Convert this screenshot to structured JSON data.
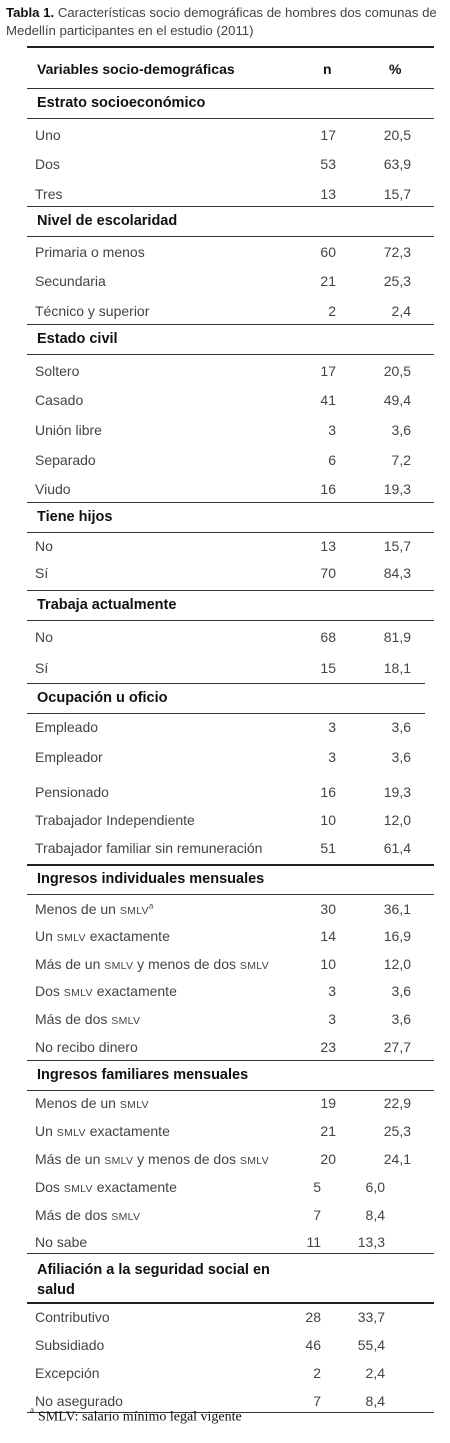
{
  "caption": {
    "label": "Tabla 1.",
    "text": "Características socio demográficas de hombres dos comunas de Medellín participantes en el estudio (2011)"
  },
  "header": {
    "variable": "Variables socio-demográficas",
    "n": "n",
    "pct": "%"
  },
  "sections": [
    {
      "title": "Estrato socioeconómico",
      "rows": [
        {
          "label": "Uno",
          "n": "17",
          "pct": "20,5"
        },
        {
          "label": "Dos",
          "n": "53",
          "pct": "63,9"
        },
        {
          "label": "Tres",
          "n": "13",
          "pct": "15,7"
        }
      ]
    },
    {
      "title": "Nivel de escolaridad",
      "rows": [
        {
          "label": "Primaria o menos",
          "n": "60",
          "pct": "72,3"
        },
        {
          "label": "Secundaria",
          "n": "21",
          "pct": "25,3"
        },
        {
          "label": "Técnico y superior",
          "n": "2",
          "pct": "2,4"
        }
      ]
    },
    {
      "title": "Estado civil",
      "rows": [
        {
          "label": "Soltero",
          "n": "17",
          "pct": "20,5"
        },
        {
          "label": "Casado",
          "n": "41",
          "pct": "49,4"
        },
        {
          "label": "Unión libre",
          "n": "3",
          "pct": "3,6"
        },
        {
          "label": "Separado",
          "n": "6",
          "pct": "7,2"
        },
        {
          "label": "Viudo",
          "n": "16",
          "pct": "19,3"
        }
      ]
    },
    {
      "title": "Tiene hijos",
      "rows": [
        {
          "label": "No",
          "n": "13",
          "pct": "15,7"
        },
        {
          "label": "Sí",
          "n": "70",
          "pct": "84,3"
        }
      ]
    },
    {
      "title": "Trabaja actualmente",
      "rows": [
        {
          "label": "No",
          "n": "68",
          "pct": "81,9"
        },
        {
          "label": "Sí",
          "n": "15",
          "pct": "18,1"
        }
      ]
    },
    {
      "title": "Ocupación u oficio",
      "rows": [
        {
          "label": "Empleado",
          "n": "3",
          "pct": "3,6"
        },
        {
          "label": "Empleador",
          "n": "3",
          "pct": "3,6"
        },
        {
          "label": "Pensionado",
          "n": "16",
          "pct": "19,3"
        },
        {
          "label": "Trabajador Independiente",
          "n": "10",
          "pct": "12,0"
        },
        {
          "label": "Trabajador familiar sin remuneración",
          "n": "51",
          "pct": "61,4"
        }
      ]
    },
    {
      "title": "Ingresos individuales mensuales",
      "rows": [
        {
          "label": "Menos de un smlv",
          "n": "30",
          "pct": "36,1",
          "sup": "a"
        },
        {
          "label": "Un smlv exactamente",
          "n": "14",
          "pct": "16,9"
        },
        {
          "label": "Más de un smlv y menos de dos smlv",
          "n": "10",
          "pct": "12,0"
        },
        {
          "label": "Dos smlv exactamente",
          "n": "3",
          "pct": "3,6"
        },
        {
          "label": "Más de dos smlv",
          "n": "3",
          "pct": "3,6"
        },
        {
          "label": "No recibo dinero",
          "n": "23",
          "pct": "27,7"
        }
      ]
    },
    {
      "title": "Ingresos familiares mensuales",
      "rows": [
        {
          "label": "Menos de un smlv",
          "n": "19",
          "pct": "22,9"
        },
        {
          "label": "Un smlv exactamente",
          "n": "21",
          "pct": "25,3"
        },
        {
          "label": "Más de un smlv y menos de dos smlv",
          "n": "20",
          "pct": "24,1"
        },
        {
          "label": "Dos smlv exactamente",
          "n": "5",
          "pct": "6,0"
        },
        {
          "label": "Más de dos smlv",
          "n": "7",
          "pct": "8,4"
        },
        {
          "label": "No sabe",
          "n": "11",
          "pct": "13,3"
        }
      ]
    },
    {
      "title": "Afiliación a la seguridad social en salud",
      "rows": [
        {
          "label": "Contributivo",
          "n": "28",
          "pct": "33,7"
        },
        {
          "label": "Subsidiado",
          "n": "46",
          "pct": "55,4"
        },
        {
          "label": "Excepción",
          "n": "2",
          "pct": "2,4"
        },
        {
          "label": "No asegurado",
          "n": "7",
          "pct": "8,4"
        }
      ]
    }
  ],
  "footnote": {
    "marker": "a",
    "text": "SMLV: salario mínimo legal vigente"
  }
}
